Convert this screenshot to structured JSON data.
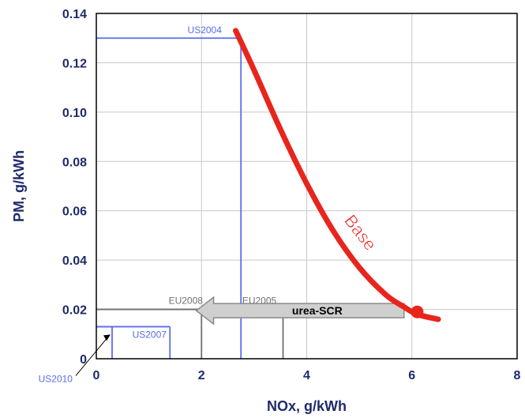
{
  "chart_data": {
    "type": "line",
    "xlabel": "NOx, g/kWh",
    "ylabel": "PM, g/kWh",
    "xlim": [
      0,
      8
    ],
    "ylim": [
      0,
      0.14
    ],
    "x_ticks": [
      "0",
      "2",
      "4",
      "6",
      "8"
    ],
    "y_ticks": [
      "0",
      "0.02",
      "0.04",
      "0.06",
      "0.08",
      "0.10",
      "0.12",
      "0.14"
    ],
    "grid": true,
    "series": [
      {
        "name": "Base",
        "color": "#e8251c",
        "points": [
          {
            "x": 2.65,
            "y": 0.133
          },
          {
            "x": 3.0,
            "y": 0.117
          },
          {
            "x": 3.5,
            "y": 0.093
          },
          {
            "x": 4.0,
            "y": 0.071
          },
          {
            "x": 4.5,
            "y": 0.052
          },
          {
            "x": 5.0,
            "y": 0.037
          },
          {
            "x": 5.5,
            "y": 0.026
          },
          {
            "x": 5.85,
            "y": 0.021
          },
          {
            "x": 6.1,
            "y": 0.018
          },
          {
            "x": 6.5,
            "y": 0.016
          }
        ],
        "marker": {
          "x": 6.1,
          "y": 0.019
        }
      }
    ],
    "standards": [
      {
        "name": "US2004",
        "nox": 2.75,
        "pm": 0.13,
        "color": "#5b6ee8"
      },
      {
        "name": "EU2005",
        "nox": 3.55,
        "pm": 0.02,
        "color": "#707070"
      },
      {
        "name": "EU2008",
        "nox": 2.0,
        "pm": 0.02,
        "color": "#707070"
      },
      {
        "name": "US2007",
        "nox": 1.4,
        "pm": 0.013,
        "color": "#5b6ee8"
      },
      {
        "name": "US2010",
        "nox": 0.3,
        "pm": 0.013,
        "color": "#5b6ee8"
      }
    ],
    "annotations": [
      {
        "text": "urea-SCR",
        "type": "arrow",
        "from": {
          "x": 5.85,
          "y": 0.0195
        },
        "to": {
          "x": 1.9,
          "y": 0.0195
        }
      }
    ]
  }
}
